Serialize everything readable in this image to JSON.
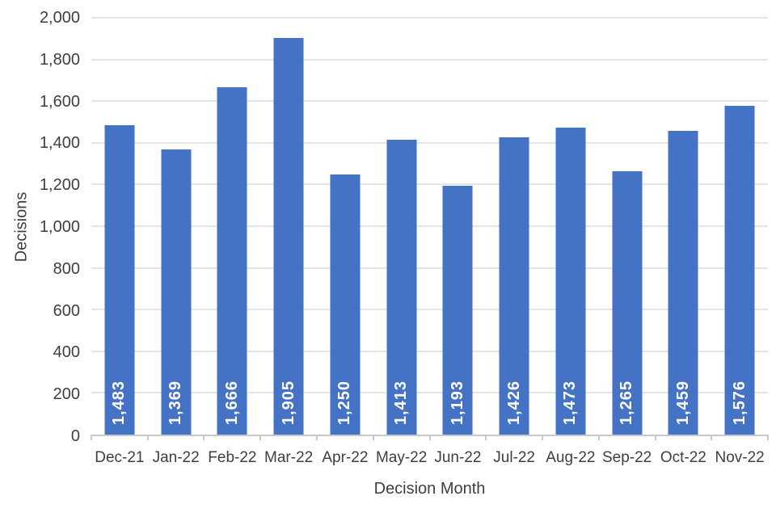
{
  "chart_data": {
    "type": "bar",
    "title": "",
    "xlabel": "Decision Month",
    "ylabel": "Decisions",
    "categories": [
      "Dec-21",
      "Jan-22",
      "Feb-22",
      "Mar-22",
      "Apr-22",
      "May-22",
      "Jun-22",
      "Jul-22",
      "Aug-22",
      "Sep-22",
      "Oct-22",
      "Nov-22"
    ],
    "values": [
      1483,
      1369,
      1666,
      1905,
      1250,
      1413,
      1193,
      1426,
      1473,
      1265,
      1459,
      1576
    ],
    "value_labels": [
      "1,483",
      "1,369",
      "1,666",
      "1,905",
      "1,250",
      "1,413",
      "1,193",
      "1,426",
      "1,473",
      "1,265",
      "1,459",
      "1,576"
    ],
    "ylim": [
      0,
      2000
    ],
    "ytick_step": 200,
    "ytick_labels": [
      "0",
      "200",
      "400",
      "600",
      "800",
      "1,000",
      "1,200",
      "1,400",
      "1,600",
      "1,800",
      "2,000"
    ],
    "grid": true,
    "legend": false,
    "bar_color": "#4472C4",
    "value_label_color": "#FFFFFF",
    "gridline_color": "#E4E4E4",
    "axis_line_color": "#C9C9C9",
    "tick_text_color": "#3F3F3F"
  }
}
